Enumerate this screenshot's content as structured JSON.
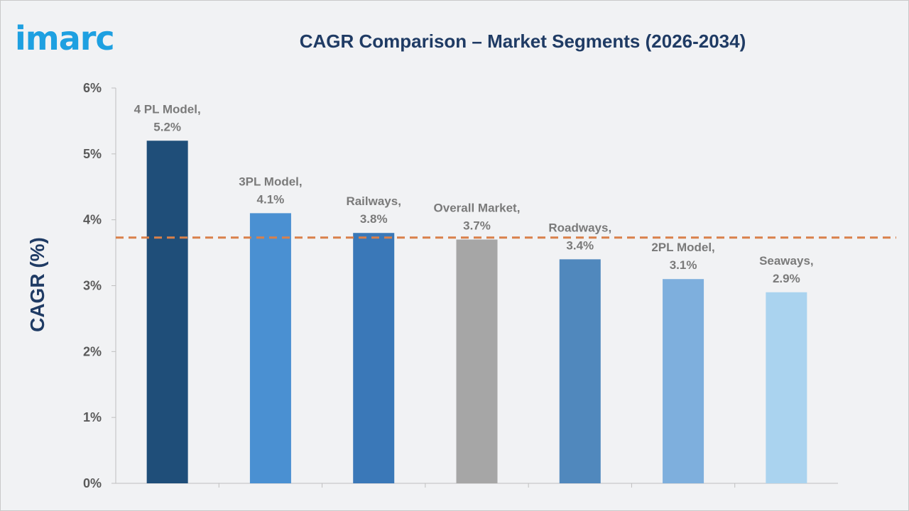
{
  "brand": {
    "logo_text": "imarc"
  },
  "chart_data": {
    "type": "bar",
    "title": "CAGR Comparison – Market Segments (2026-2034)",
    "ylabel": "CAGR (%)",
    "xlabel": "",
    "ylim": [
      0,
      6
    ],
    "yticks": [
      0,
      1,
      2,
      3,
      4,
      5,
      6
    ],
    "ytick_labels": [
      "0%",
      "1%",
      "2%",
      "3%",
      "4%",
      "5%",
      "6%"
    ],
    "categories": [
      "4 PL Model",
      "3PL Model",
      "Railways",
      "Overall Market",
      "Roadways",
      "2PL Model",
      "Seaways"
    ],
    "values": [
      5.2,
      4.1,
      3.8,
      3.7,
      3.4,
      3.1,
      2.9
    ],
    "data_labels": [
      [
        "4 PL Model,",
        "5.2%"
      ],
      [
        "3PL Model,",
        "4.1%"
      ],
      [
        "Railways,",
        "3.8%"
      ],
      [
        "Overall Market,",
        "3.7%"
      ],
      [
        "Roadways,",
        "3.4%"
      ],
      [
        "2PL Model,",
        "3.1%"
      ],
      [
        "Seaways,",
        "2.9%"
      ]
    ],
    "colors": [
      "#1f4e79",
      "#4a90d2",
      "#3a78b8",
      "#a6a6a6",
      "#5088bd",
      "#7eafdd",
      "#aad3ef"
    ],
    "reference_line": {
      "value": 3.73,
      "color": "#d9804a",
      "style": "dashed"
    },
    "grid": false
  }
}
